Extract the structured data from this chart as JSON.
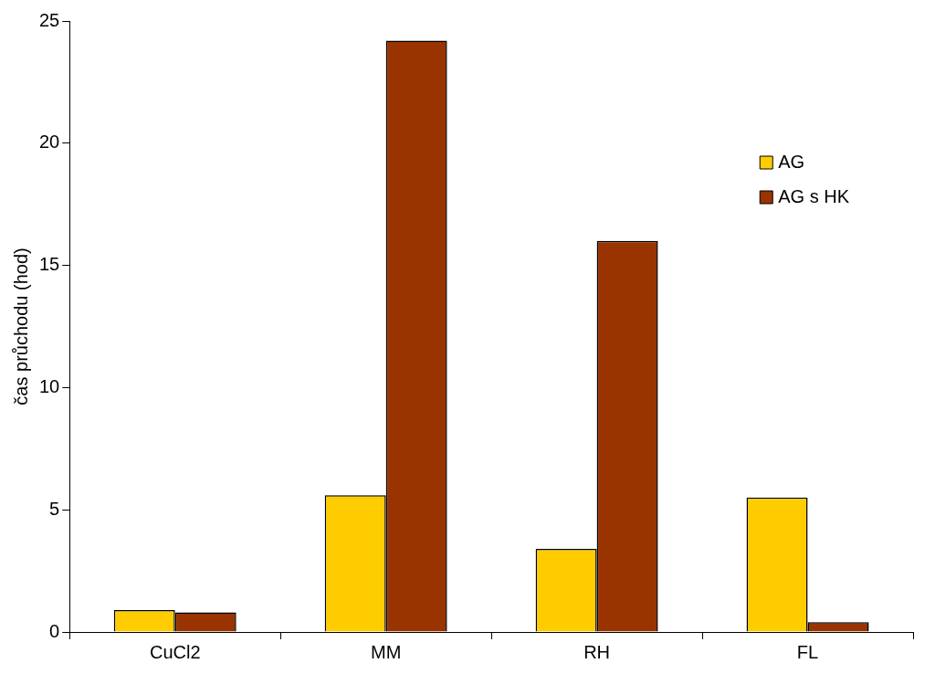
{
  "chart_data": {
    "type": "bar",
    "ylabel": "čas průchodu (hod)",
    "categories": [
      "CuCl2",
      "MM",
      "RH",
      "FL"
    ],
    "series": [
      {
        "name": "AG",
        "color": "#ffcc00",
        "values": [
          0.9,
          5.6,
          3.4,
          5.5
        ]
      },
      {
        "name": "AG s HK",
        "color": "#993300",
        "values": [
          0.8,
          24.2,
          16.0,
          0.4
        ]
      }
    ],
    "ylim": [
      0,
      25
    ],
    "yticks": [
      0,
      5,
      10,
      15,
      20,
      25
    ],
    "grid": false,
    "legend": "top right"
  }
}
